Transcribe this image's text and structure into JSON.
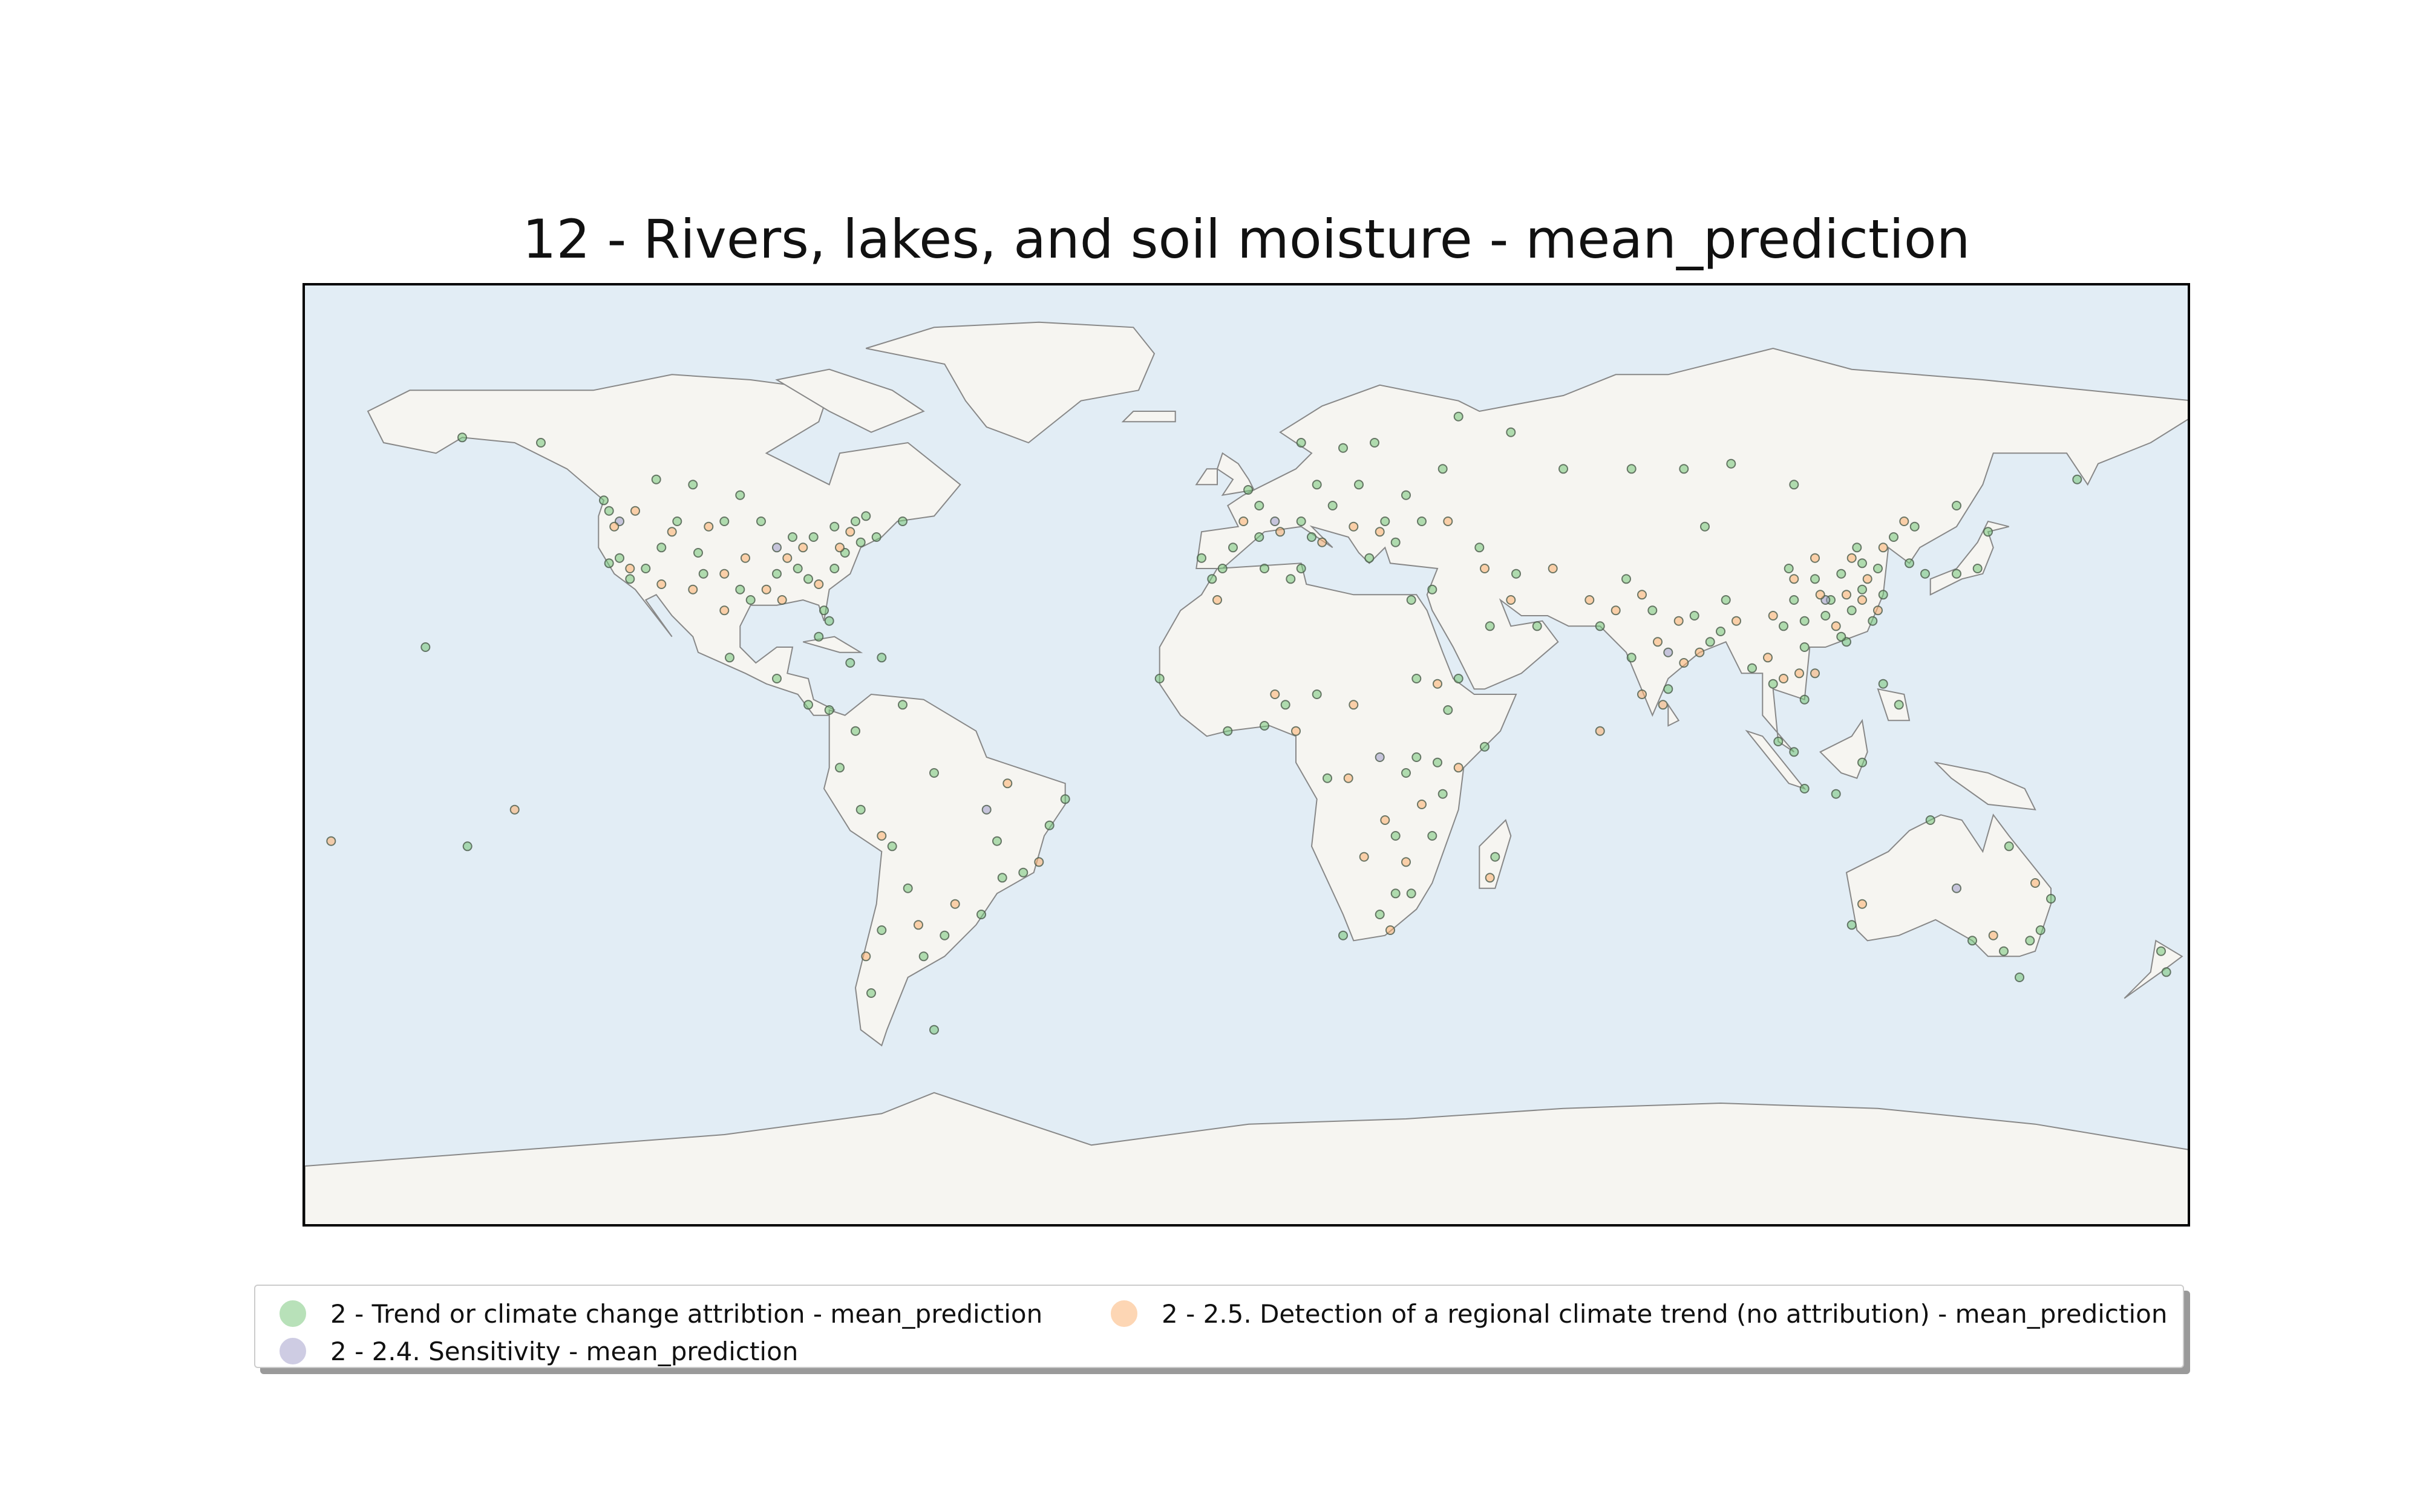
{
  "title": "12 - Rivers, lakes, and soil moisture - mean_prediction",
  "map": {
    "projection": "plate-carree",
    "extent": {
      "lon": [
        -180,
        180
      ],
      "lat": [
        -90,
        90
      ]
    },
    "ocean_color": "#e2edf5",
    "land_color": "#f6f5f1",
    "coastline_color": "#888888"
  },
  "legend": {
    "items": [
      {
        "label": "2 - Trend or climate change attribtion - mean_prediction",
        "color": "#74c476"
      },
      {
        "label": "2 - 2.4. Sensitivity - mean_prediction",
        "color": "#9e9ac8"
      },
      {
        "label": "2 - 2.5. Detection of a regional climate trend (no attribution) - mean_prediction",
        "color": "#fdae6b"
      }
    ]
  },
  "chart_data": {
    "type": "scatter",
    "title": "12 - Rivers, lakes, and soil moisture - mean_prediction",
    "xlim": [
      -180,
      180
    ],
    "ylim": [
      -90,
      90
    ],
    "legend_position": "below",
    "series": [
      {
        "name": "2 - Trend or climate change attribtion - mean_prediction",
        "color": "#74c476",
        "points": [
          [
            -122,
            47
          ],
          [
            -118,
            34
          ],
          [
            -112,
            40
          ],
          [
            -105,
            39
          ],
          [
            -97,
            32
          ],
          [
            -95,
            30
          ],
          [
            -90,
            35
          ],
          [
            -87,
            42
          ],
          [
            -84,
            34
          ],
          [
            -80,
            26
          ],
          [
            -77,
            39
          ],
          [
            -74,
            41
          ],
          [
            -71,
            42
          ],
          [
            -83,
            42
          ],
          [
            -93,
            45
          ],
          [
            -100,
            45
          ],
          [
            -115,
            36
          ],
          [
            -120,
            38
          ],
          [
            -122,
            37
          ],
          [
            -109,
            45
          ],
          [
            -104,
            35
          ],
          [
            -86,
            36
          ],
          [
            -79,
            36
          ],
          [
            -81,
            28
          ],
          [
            -75,
            45
          ],
          [
            -73,
            46
          ],
          [
            -113,
            53
          ],
          [
            -123,
            49
          ],
          [
            -106,
            52
          ],
          [
            -97,
            50
          ],
          [
            -150,
            61
          ],
          [
            -135,
            60
          ],
          [
            -79,
            44
          ],
          [
            -66,
            45
          ],
          [
            -99,
            19
          ],
          [
            -90,
            15
          ],
          [
            -84,
            10
          ],
          [
            -80,
            9
          ],
          [
            -75,
            5
          ],
          [
            -74,
            -10
          ],
          [
            -78,
            -2
          ],
          [
            -66,
            10
          ],
          [
            -58,
            -34
          ],
          [
            -70,
            -33
          ],
          [
            -47,
            -23
          ],
          [
            -43,
            -22
          ],
          [
            -38,
            -13
          ],
          [
            -35,
            -8
          ],
          [
            -48,
            -16
          ],
          [
            -60,
            -3
          ],
          [
            -65,
            -25
          ],
          [
            -68,
            -17
          ],
          [
            -72,
            -45
          ],
          [
            -0.1,
            51
          ],
          [
            2,
            48
          ],
          [
            13,
            52
          ],
          [
            10,
            45
          ],
          [
            -3,
            40
          ],
          [
            -9,
            38
          ],
          [
            12,
            42
          ],
          [
            18,
            59
          ],
          [
            10,
            60
          ],
          [
            24,
            60
          ],
          [
            37,
            55
          ],
          [
            30,
            50
          ],
          [
            21,
            52
          ],
          [
            16,
            48
          ],
          [
            23,
            38
          ],
          [
            28,
            41
          ],
          [
            44,
            40
          ],
          [
            35,
            32
          ],
          [
            51,
            35
          ],
          [
            46,
            25
          ],
          [
            55,
            25
          ],
          [
            67,
            25
          ],
          [
            73,
            19
          ],
          [
            77,
            28
          ],
          [
            80,
            13
          ],
          [
            88,
            22
          ],
          [
            85,
            27
          ],
          [
            72,
            34
          ],
          [
            90,
            24
          ],
          [
            96,
            17
          ],
          [
            100,
            14
          ],
          [
            106,
            21
          ],
          [
            106,
            11
          ],
          [
            101,
            3
          ],
          [
            104,
            1
          ],
          [
            106,
            -6
          ],
          [
            112,
            -7
          ],
          [
            117,
            -1
          ],
          [
            121,
            14
          ],
          [
            124,
            10
          ],
          [
            114,
            22
          ],
          [
            113,
            23
          ],
          [
            121,
            31
          ],
          [
            117,
            32
          ],
          [
            116,
            40
          ],
          [
            113,
            35
          ],
          [
            104,
            30
          ],
          [
            108,
            34
          ],
          [
            120,
            36
          ],
          [
            126,
            37
          ],
          [
            129,
            35
          ],
          [
            127,
            44
          ],
          [
            123,
            42
          ],
          [
            139,
            36
          ],
          [
            135,
            35
          ],
          [
            141,
            43
          ],
          [
            87,
            44
          ],
          [
            103,
            36
          ],
          [
            91,
            30
          ],
          [
            102,
            25
          ],
          [
            106,
            26
          ],
          [
            110,
            27
          ],
          [
            115,
            28
          ],
          [
            119,
            26
          ],
          [
            111,
            30
          ],
          [
            117,
            37
          ],
          [
            -17,
            15
          ],
          [
            -4,
            5
          ],
          [
            3,
            6
          ],
          [
            7,
            10
          ],
          [
            13,
            12
          ],
          [
            8,
            34
          ],
          [
            10,
            36
          ],
          [
            3,
            36
          ],
          [
            -7,
            34
          ],
          [
            31,
            30
          ],
          [
            32,
            15
          ],
          [
            38,
            9
          ],
          [
            36,
            -1
          ],
          [
            37,
            -7
          ],
          [
            32,
            0
          ],
          [
            28,
            -15
          ],
          [
            35,
            -15
          ],
          [
            31,
            -26
          ],
          [
            28,
            -26
          ],
          [
            18,
            -34
          ],
          [
            25,
            -30
          ],
          [
            15,
            -4
          ],
          [
            47,
            -19
          ],
          [
            45,
            2
          ],
          [
            40,
            15
          ],
          [
            30,
            -3
          ],
          [
            144,
            -37
          ],
          [
            151,
            -33
          ],
          [
            153,
            -27
          ],
          [
            115,
            -32
          ],
          [
            138,
            -35
          ],
          [
            147,
            -42
          ],
          [
            130,
            -12
          ],
          [
            149,
            -35
          ],
          [
            145,
            -17
          ],
          [
            175,
            -41
          ],
          [
            174,
            -37
          ],
          [
            -157,
            21
          ],
          [
            -149,
            -17
          ],
          [
            -60,
            -52
          ],
          [
            60,
            55
          ],
          [
            73,
            55
          ],
          [
            83,
            55
          ],
          [
            104,
            52
          ],
          [
            92,
            56
          ],
          [
            40,
            65
          ],
          [
            50,
            62
          ],
          [
            135,
            48
          ],
          [
            158,
            53
          ],
          [
            -70,
            19
          ],
          [
            -76,
            18
          ],
          [
            -82,
            23
          ],
          [
            2,
            42
          ],
          [
            -5,
            36
          ],
          [
            26,
            45
          ],
          [
            33,
            45
          ],
          [
            -62,
            -38
          ],
          [
            -51,
            -30
          ]
        ]
      },
      {
        "name": "2 - 2.4. Sensitivity - mean_prediction",
        "color": "#9e9ac8",
        "points": [
          [
            -120,
            45
          ],
          [
            -90,
            40
          ],
          [
            5,
            45
          ],
          [
            110,
            30
          ],
          [
            80,
            20
          ],
          [
            -50,
            -10
          ],
          [
            25,
            0
          ],
          [
            135,
            -25
          ]
        ]
      },
      {
        "name": "2 - 2.5. Detection of a regional climate trend (no attribution) - mean_prediction",
        "color": "#fdae6b",
        "points": [
          [
            -118,
            36
          ],
          [
            -112,
            33
          ],
          [
            -106,
            32
          ],
          [
            -100,
            35
          ],
          [
            -96,
            38
          ],
          [
            -88,
            38
          ],
          [
            -85,
            40
          ],
          [
            -82,
            33
          ],
          [
            -78,
            40
          ],
          [
            -76,
            43
          ],
          [
            -121,
            44
          ],
          [
            -117,
            47
          ],
          [
            -110,
            43
          ],
          [
            -103,
            44
          ],
          [
            -92,
            32
          ],
          [
            -89,
            30
          ],
          [
            -100,
            28
          ],
          [
            -70,
            -15
          ],
          [
            -46,
            -5
          ],
          [
            -40,
            -20
          ],
          [
            -56,
            -28
          ],
          [
            -63,
            -32
          ],
          [
            -73,
            -38
          ],
          [
            -1,
            45
          ],
          [
            6,
            43
          ],
          [
            14,
            41
          ],
          [
            20,
            44
          ],
          [
            25,
            43
          ],
          [
            38,
            45
          ],
          [
            45,
            36
          ],
          [
            50,
            30
          ],
          [
            58,
            36
          ],
          [
            65,
            30
          ],
          [
            70,
            28
          ],
          [
            75,
            31
          ],
          [
            78,
            22
          ],
          [
            82,
            26
          ],
          [
            86,
            20
          ],
          [
            75,
            12
          ],
          [
            79,
            10
          ],
          [
            83,
            18
          ],
          [
            93,
            26
          ],
          [
            99,
            19
          ],
          [
            102,
            15
          ],
          [
            105,
            16
          ],
          [
            108,
            16
          ],
          [
            100,
            27
          ],
          [
            104,
            34
          ],
          [
            109,
            31
          ],
          [
            112,
            25
          ],
          [
            114,
            31
          ],
          [
            117,
            30
          ],
          [
            118,
            34
          ],
          [
            120,
            28
          ],
          [
            115,
            38
          ],
          [
            121,
            40
          ],
          [
            108,
            38
          ],
          [
            125,
            45
          ],
          [
            -6,
            30
          ],
          [
            5,
            12
          ],
          [
            9,
            5
          ],
          [
            20,
            10
          ],
          [
            36,
            14
          ],
          [
            40,
            -2
          ],
          [
            33,
            -9
          ],
          [
            26,
            -12
          ],
          [
            22,
            -19
          ],
          [
            30,
            -20
          ],
          [
            27,
            -33
          ],
          [
            19,
            -4
          ],
          [
            46,
            -23
          ],
          [
            142,
            -34
          ],
          [
            150,
            -24
          ],
          [
            117,
            -28
          ],
          [
            -175,
            -16
          ],
          [
            -140,
            -10
          ],
          [
            67,
            5
          ]
        ]
      }
    ]
  }
}
